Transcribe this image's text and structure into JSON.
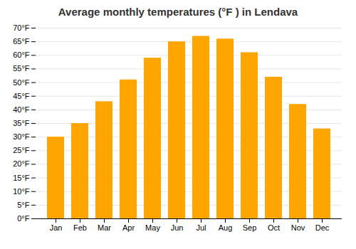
{
  "chart_data": {
    "type": "bar",
    "title": "Average monthly temperatures (°F ) in Lendava",
    "categories": [
      "Jan",
      "Feb",
      "Mar",
      "Apr",
      "May",
      "Jun",
      "Jul",
      "Aug",
      "Sep",
      "Oct",
      "Nov",
      "Dec"
    ],
    "values": [
      30,
      35,
      43,
      51,
      59,
      65,
      67,
      66,
      61,
      52,
      42,
      33
    ],
    "color": "#FFA500",
    "ylim": [
      0,
      70
    ],
    "yticks": [
      {
        "value": 0,
        "label": "0°F"
      },
      {
        "value": 5,
        "label": "5°F"
      },
      {
        "value": 10,
        "label": "10°F"
      },
      {
        "value": 15,
        "label": "15°F"
      },
      {
        "value": 20,
        "label": "20°F"
      },
      {
        "value": 25,
        "label": "25°F"
      },
      {
        "value": 30,
        "label": "30°F"
      },
      {
        "value": 35,
        "label": "35°F"
      },
      {
        "value": 40,
        "label": "40°F"
      },
      {
        "value": 45,
        "label": "45°F"
      },
      {
        "value": 50,
        "label": "50°F"
      },
      {
        "value": 55,
        "label": "55°F"
      },
      {
        "value": 60,
        "label": "60°F"
      },
      {
        "value": 65,
        "label": "65°F"
      },
      {
        "value": 70,
        "label": "70°F"
      }
    ],
    "grid": true
  }
}
